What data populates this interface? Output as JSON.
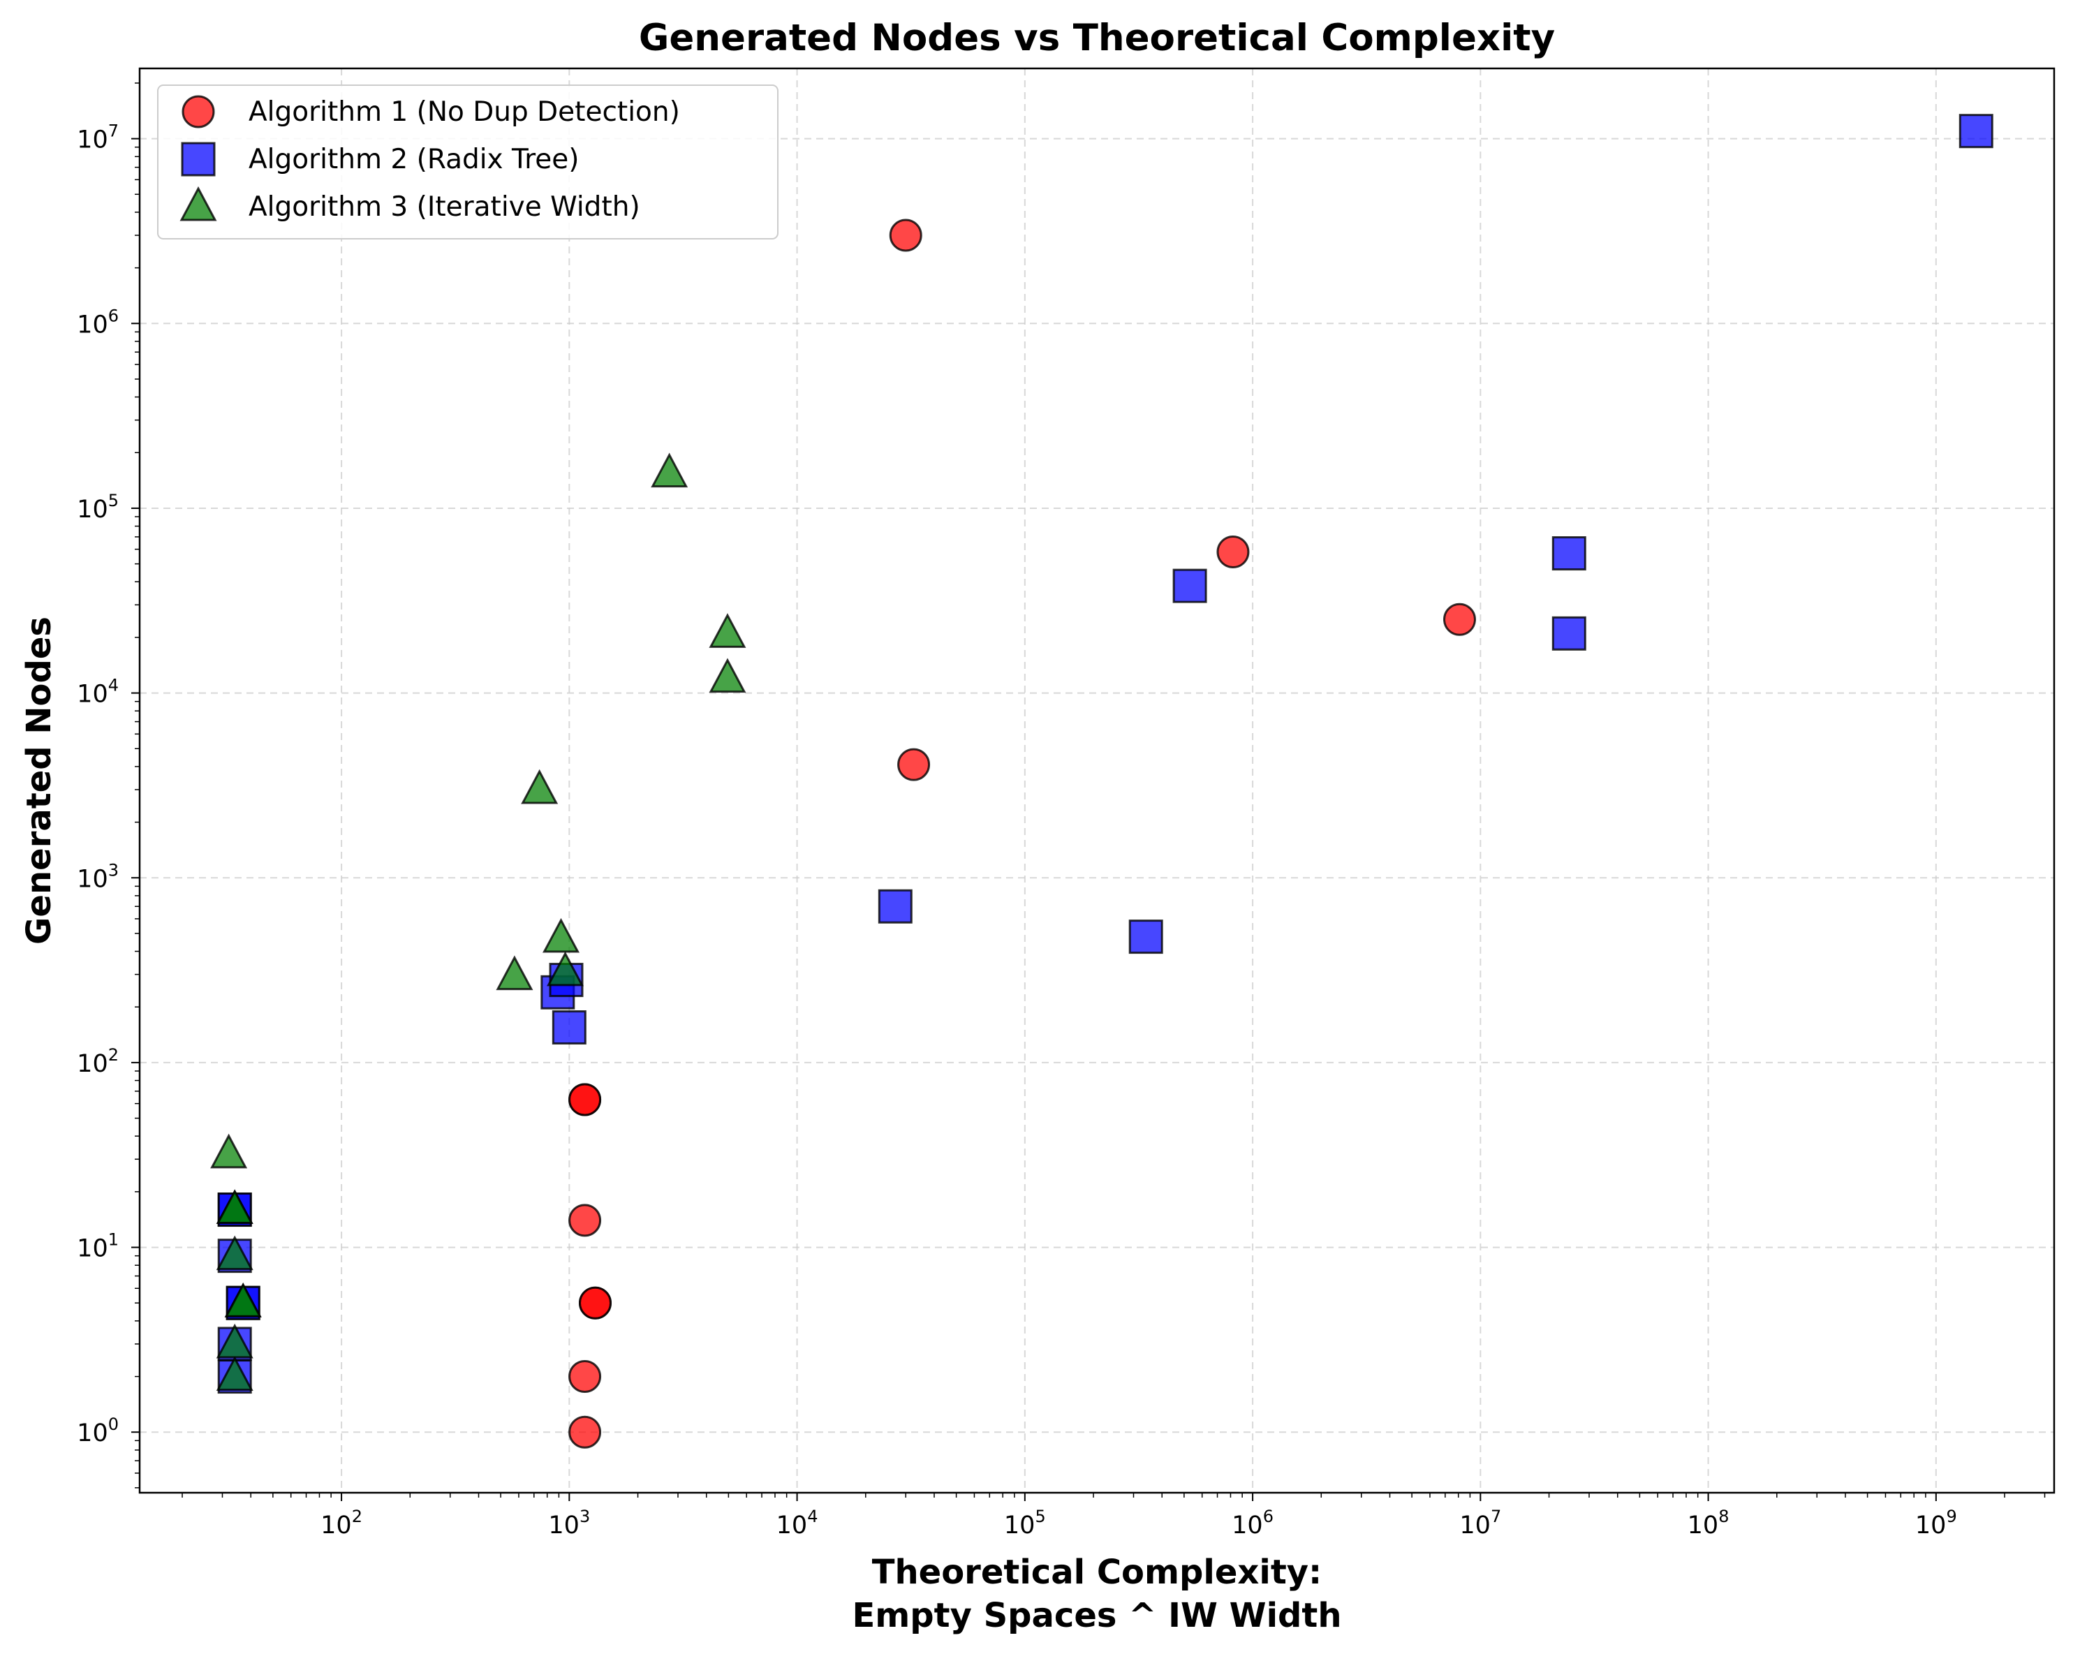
{
  "chart_data": {
    "type": "scatter",
    "title": "Generated Nodes vs Theoretical Complexity",
    "xlabel_line1": "Theoretical Complexity:",
    "xlabel_line2": "Empty Spaces ^ IW Width",
    "ylabel": "Generated Nodes",
    "xscale": "log",
    "yscale": "log",
    "xlim": [
      13,
      3300000000
    ],
    "ylim": [
      0.47,
      24000000
    ],
    "xticks": [
      100,
      1000,
      10000,
      100000,
      1000000,
      10000000,
      100000000,
      1000000000
    ],
    "xtick_labels": [
      {
        "base": "10",
        "exp": "2"
      },
      {
        "base": "10",
        "exp": "3"
      },
      {
        "base": "10",
        "exp": "4"
      },
      {
        "base": "10",
        "exp": "5"
      },
      {
        "base": "10",
        "exp": "6"
      },
      {
        "base": "10",
        "exp": "7"
      },
      {
        "base": "10",
        "exp": "8"
      },
      {
        "base": "10",
        "exp": "9"
      }
    ],
    "yticks": [
      1,
      10,
      100,
      1000,
      10000,
      100000,
      1000000,
      10000000
    ],
    "ytick_labels": [
      {
        "base": "10",
        "exp": "0"
      },
      {
        "base": "10",
        "exp": "1"
      },
      {
        "base": "10",
        "exp": "2"
      },
      {
        "base": "10",
        "exp": "3"
      },
      {
        "base": "10",
        "exp": "4"
      },
      {
        "base": "10",
        "exp": "5"
      },
      {
        "base": "10",
        "exp": "6"
      },
      {
        "base": "10",
        "exp": "7"
      }
    ],
    "grid": true,
    "legend_position": "top-left",
    "series": [
      {
        "name": "Algorithm 1 (No Dup Detection)",
        "marker": "circle",
        "color": "#ff0000",
        "points": [
          [
            1170,
            1
          ],
          [
            1170,
            2
          ],
          [
            1300,
            5
          ],
          [
            1300,
            5
          ],
          [
            1170,
            14
          ],
          [
            1170,
            63
          ],
          [
            1170,
            63
          ],
          [
            32500,
            4100
          ],
          [
            30000,
            3000000
          ],
          [
            820000,
            58000
          ],
          [
            8100000,
            25000
          ]
        ]
      },
      {
        "name": "Algorithm 2 (Radix Tree)",
        "marker": "square",
        "color": "#0000ff",
        "points": [
          [
            34,
            2
          ],
          [
            34,
            3
          ],
          [
            37,
            5
          ],
          [
            37,
            5
          ],
          [
            34,
            9
          ],
          [
            34,
            16
          ],
          [
            34,
            16
          ],
          [
            1000,
            155
          ],
          [
            890,
            240
          ],
          [
            970,
            280
          ],
          [
            27000,
            700
          ],
          [
            340000,
            480
          ],
          [
            530000,
            38000
          ],
          [
            24500000,
            21000
          ],
          [
            24500000,
            57000
          ],
          [
            1500000000,
            11000000
          ]
        ]
      },
      {
        "name": "Algorithm 3 (Iterative Width)",
        "marker": "triangle",
        "color": "#008000",
        "points": [
          [
            34,
            2
          ],
          [
            34,
            3
          ],
          [
            37,
            5
          ],
          [
            37,
            5
          ],
          [
            34,
            9
          ],
          [
            34,
            16
          ],
          [
            34,
            16
          ],
          [
            32,
            32
          ],
          [
            575,
            295
          ],
          [
            960,
            310
          ],
          [
            920,
            470
          ],
          [
            740,
            3000
          ],
          [
            2750,
            155000
          ],
          [
            4950,
            12000
          ],
          [
            4950,
            21000
          ]
        ]
      }
    ]
  }
}
